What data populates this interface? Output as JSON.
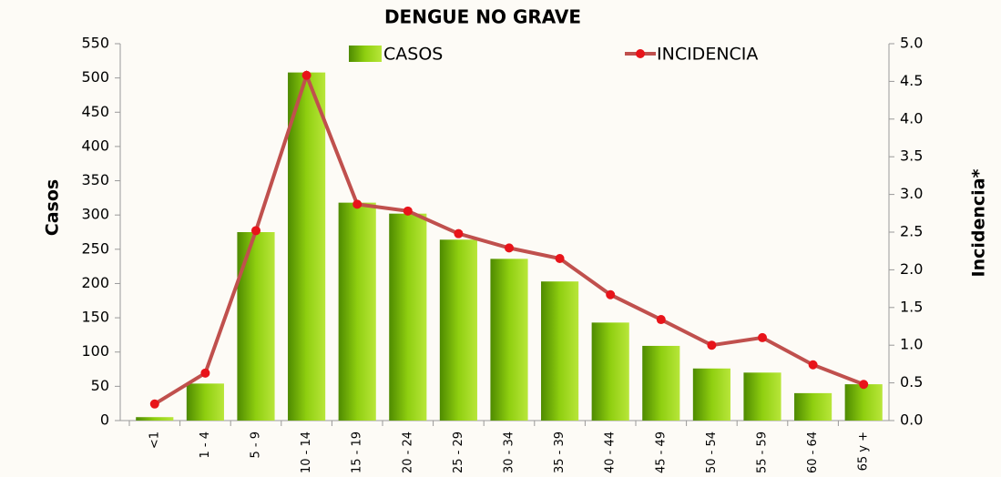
{
  "chart_data": {
    "type": "bar_line",
    "title": "DENGUE NO GRAVE",
    "y_label": "Casos",
    "y2_label": "Incidencia*",
    "categories": [
      "<1",
      "1 - 4",
      "5 - 9",
      "10 - 14",
      "15 - 19",
      "20 - 24",
      "25 - 29",
      "30 - 34",
      "35 - 39",
      "40 - 44",
      "45 - 49",
      "50 - 54",
      "55 - 59",
      "60 - 64",
      "65 y +"
    ],
    "series": [
      {
        "name": "CASOS",
        "type": "bar",
        "color": "#7dc400",
        "values": [
          5,
          54,
          275,
          508,
          318,
          302,
          264,
          236,
          203,
          143,
          109,
          76,
          70,
          40,
          53
        ]
      },
      {
        "name": "INCIDENCIA",
        "type": "line",
        "axis": "y2",
        "color": "#c0504d",
        "values": [
          0.22,
          0.63,
          2.52,
          4.58,
          2.87,
          2.78,
          2.48,
          2.29,
          2.15,
          1.67,
          1.34,
          1.0,
          1.1,
          0.74,
          0.48
        ]
      }
    ],
    "ylim": [
      0,
      550
    ],
    "yticks": [
      0,
      50,
      100,
      150,
      200,
      250,
      300,
      350,
      400,
      450,
      500,
      550
    ],
    "y2lim": [
      0,
      5
    ],
    "y2ticks": [
      {
        "value": 0,
        "label": "0.0"
      },
      0.5,
      {
        "value": 1,
        "label": "1.0"
      },
      1.5,
      {
        "value": 2,
        "label": "2.0"
      },
      2.5,
      {
        "value": 3,
        "label": "3.0"
      },
      3.5,
      {
        "value": 4,
        "label": "4.0"
      },
      4.5,
      {
        "value": 5,
        "label": "5.0"
      }
    ]
  }
}
